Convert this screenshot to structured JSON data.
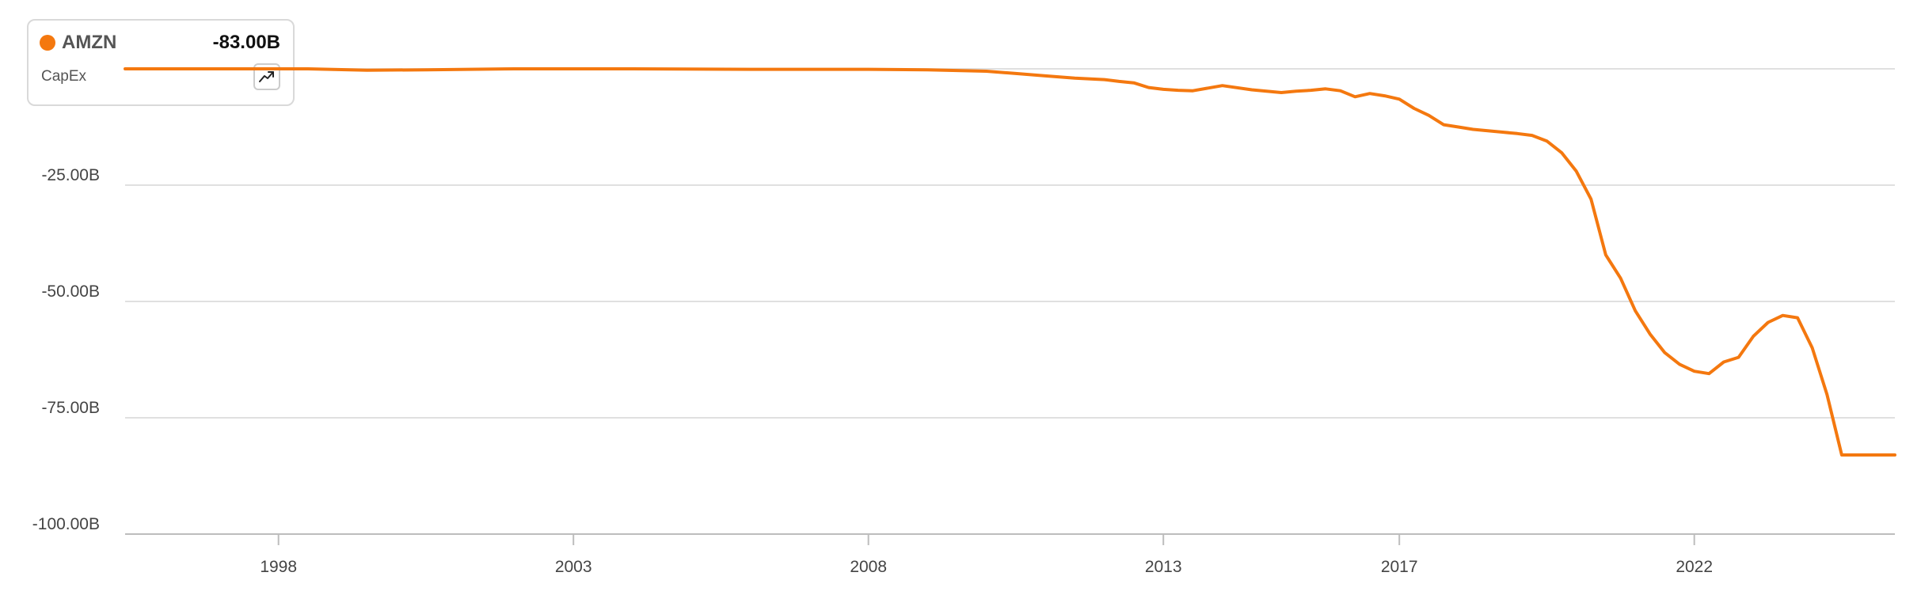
{
  "legend": {
    "ticker": "AMZN",
    "value": "-83.00B",
    "metric": "CapEx",
    "trend_icon": "trending-up-icon"
  },
  "colors": {
    "series": "#f4780f",
    "grid": "#d6d6d6",
    "axis": "#bdbdbd",
    "text": "#444444"
  },
  "chart_data": {
    "type": "line",
    "title": "",
    "xlabel": "",
    "ylabel": "",
    "xlim": [
      1995.4,
      2025.4
    ],
    "ylim": [
      -100,
      8
    ],
    "grid": true,
    "y_ticks": [
      0,
      -25,
      -50,
      -75,
      -100
    ],
    "y_tick_labels": [
      "",
      "-25.00B",
      "-50.00B",
      "-75.00B",
      "-100.00B"
    ],
    "x_ticks": [
      1998,
      2003,
      2008,
      2013,
      2017,
      2022
    ],
    "x_tick_labels": [
      "1998",
      "2003",
      "2008",
      "2013",
      "2017",
      "2022"
    ],
    "series": [
      {
        "name": "AMZN",
        "x": [
          1995.4,
          1997.0,
          1998.5,
          1999.5,
          2000.5,
          2002.0,
          2004.0,
          2006.0,
          2008.0,
          2009.0,
          2010.0,
          2010.5,
          2011.0,
          2011.5,
          2012.0,
          2012.25,
          2012.5,
          2012.75,
          2013.0,
          2013.25,
          2013.5,
          2014.0,
          2014.5,
          2015.0,
          2015.25,
          2015.5,
          2015.75,
          2016.0,
          2016.25,
          2016.5,
          2016.75,
          2017.0,
          2017.25,
          2017.5,
          2017.75,
          2018.0,
          2018.25,
          2018.5,
          2018.75,
          2019.0,
          2019.25,
          2019.5,
          2019.75,
          2020.0,
          2020.25,
          2020.5,
          2020.75,
          2021.0,
          2021.25,
          2021.5,
          2021.75,
          2022.0,
          2022.25,
          2022.5,
          2022.75,
          2023.0,
          2023.25,
          2023.5,
          2023.75,
          2024.0,
          2024.25,
          2024.5,
          2024.75,
          2025.4
        ],
        "values": [
          0,
          0,
          0,
          -0.3,
          -0.2,
          0,
          0,
          -0.1,
          -0.1,
          -0.2,
          -0.5,
          -1.0,
          -1.5,
          -2.0,
          -2.3,
          -2.7,
          -3.0,
          -4.0,
          -4.4,
          -4.6,
          -4.7,
          -3.6,
          -4.5,
          -5.1,
          -4.8,
          -4.6,
          -4.3,
          -4.7,
          -6.0,
          -5.3,
          -5.8,
          -6.5,
          -8.5,
          -10.0,
          -12.0,
          -12.5,
          -13.0,
          -13.3,
          -13.6,
          -13.9,
          -14.3,
          -15.5,
          -18.0,
          -22.0,
          -28.0,
          -40.0,
          -45.0,
          -52.0,
          -57.0,
          -61.0,
          -63.5,
          -65.0,
          -65.5,
          -63.0,
          -62.0,
          -57.5,
          -54.5,
          -53.0,
          -53.5,
          -60.0,
          -70.0,
          -83.0,
          -83.0,
          -83.0
        ]
      }
    ]
  }
}
